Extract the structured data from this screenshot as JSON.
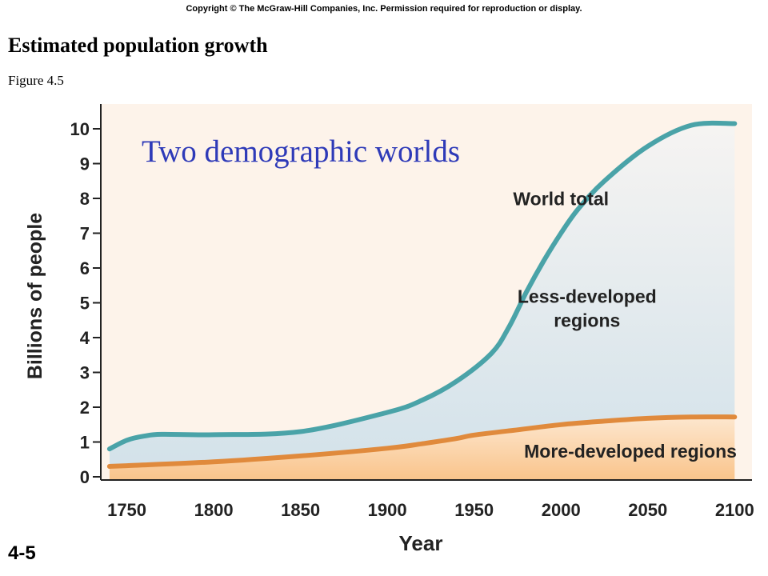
{
  "header": {
    "copyright": "Copyright © The McGraw-Hill Companies, Inc. Permission required for reproduction or display.",
    "title": "Estimated population growth",
    "subtitle": "Figure 4.5",
    "slide_number": "4-5"
  },
  "colors": {
    "world_line": "#4aa3a8",
    "more_developed_line": "#e08a3c",
    "less_developed_fill_top": "#f6f4f2",
    "less_developed_fill_bottom": "#d3e2ea",
    "more_developed_fill_top": "#fde7cf",
    "more_developed_fill_bottom": "#f9c48b",
    "background_fill": "#fdf3ea",
    "overlay_title": "#2e3ab8"
  },
  "chart_data": {
    "type": "area",
    "title": "Two demographic worlds",
    "xlabel": "Year",
    "ylabel": "Billions of people",
    "xlim": [
      1735,
      2110
    ],
    "ylim": [
      0,
      10.5
    ],
    "x_ticks": [
      1750,
      1800,
      1850,
      1900,
      1950,
      2000,
      2050,
      2100
    ],
    "y_ticks": [
      0,
      1,
      2,
      3,
      4,
      5,
      6,
      7,
      8,
      9,
      10
    ],
    "grid": false,
    "series": [
      {
        "name": "World total",
        "x": [
          1740,
          1750,
          1760,
          1770,
          1800,
          1850,
          1900,
          1920,
          1940,
          1960,
          1970,
          1980,
          1990,
          2000,
          2010,
          2025,
          2050,
          2075,
          2100
        ],
        "values": [
          0.8,
          1.05,
          1.17,
          1.22,
          1.21,
          1.3,
          1.85,
          2.2,
          2.75,
          3.55,
          4.3,
          5.3,
          6.2,
          7.0,
          7.7,
          8.5,
          9.5,
          10.1,
          10.15
        ]
      },
      {
        "name": "More-developed regions",
        "x": [
          1740,
          1750,
          1800,
          1850,
          1900,
          1920,
          1940,
          1950,
          1975,
          2000,
          2025,
          2050,
          2075,
          2100
        ],
        "values": [
          0.3,
          0.32,
          0.43,
          0.6,
          0.82,
          0.95,
          1.1,
          1.2,
          1.35,
          1.5,
          1.6,
          1.68,
          1.72,
          1.72
        ]
      }
    ],
    "annotations": [
      {
        "text_lines": [
          "World total"
        ],
        "x": 2000,
        "y": 7.8
      },
      {
        "text_lines": [
          "Less-developed",
          "regions"
        ],
        "x": 2015,
        "y": 5.0
      },
      {
        "text_lines": [
          "More-developed regions"
        ],
        "x": 2040,
        "y": 0.55
      }
    ]
  }
}
